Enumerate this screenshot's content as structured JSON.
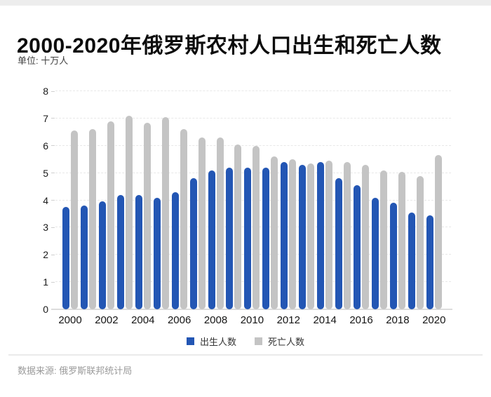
{
  "header": {
    "title": "2000-2020年俄罗斯农村人口出生和死亡人数",
    "unit_label": "单位: 十万人"
  },
  "legend": {
    "items": [
      {
        "label": "出生人数",
        "color": "#2356b4"
      },
      {
        "label": "死亡人数",
        "color": "#c4c4c4"
      }
    ]
  },
  "footer": {
    "source": "数据来源: 俄罗斯联邦统计局"
  },
  "colors": {
    "births_bar": "#2356b4",
    "deaths_bar": "#c4c4c4",
    "gridline": "#e8e8e8",
    "baseline": "#dcdcdc",
    "title_text": "#0c0c0c",
    "footer_text": "#9a9a9a"
  },
  "chart_data": {
    "type": "bar",
    "title": "2000-2020年俄罗斯农村人口出生和死亡人数",
    "unit": "十万人",
    "xlabel": "",
    "ylabel": "",
    "ylim": [
      0,
      8
    ],
    "y_ticks": [
      0,
      1,
      2,
      3,
      4,
      5,
      6,
      7,
      8
    ],
    "grid": "horizontal-dashed",
    "legend_position": "bottom",
    "categories": [
      2000,
      2001,
      2002,
      2003,
      2004,
      2005,
      2006,
      2007,
      2008,
      2009,
      2010,
      2011,
      2012,
      2013,
      2014,
      2015,
      2016,
      2017,
      2018,
      2019,
      2020
    ],
    "x_tick_labels": [
      "2000",
      "2002",
      "2004",
      "2006",
      "2008",
      "2010",
      "2012",
      "2014",
      "2016",
      "2018",
      "2020"
    ],
    "series": [
      {
        "name": "出生人数",
        "color": "#2356b4",
        "values": [
          3.75,
          3.8,
          3.95,
          4.2,
          4.2,
          4.1,
          4.3,
          4.8,
          5.1,
          5.2,
          5.2,
          5.2,
          5.4,
          5.3,
          5.4,
          4.8,
          4.55,
          4.1,
          3.9,
          3.55,
          3.45
        ]
      },
      {
        "name": "死亡人数",
        "color": "#c4c4c4",
        "values": [
          6.55,
          6.6,
          6.9,
          7.1,
          6.85,
          7.05,
          6.6,
          6.3,
          6.3,
          6.05,
          6.0,
          5.6,
          5.5,
          5.35,
          5.45,
          5.4,
          5.3,
          5.1,
          5.05,
          4.9,
          5.65
        ]
      }
    ]
  }
}
